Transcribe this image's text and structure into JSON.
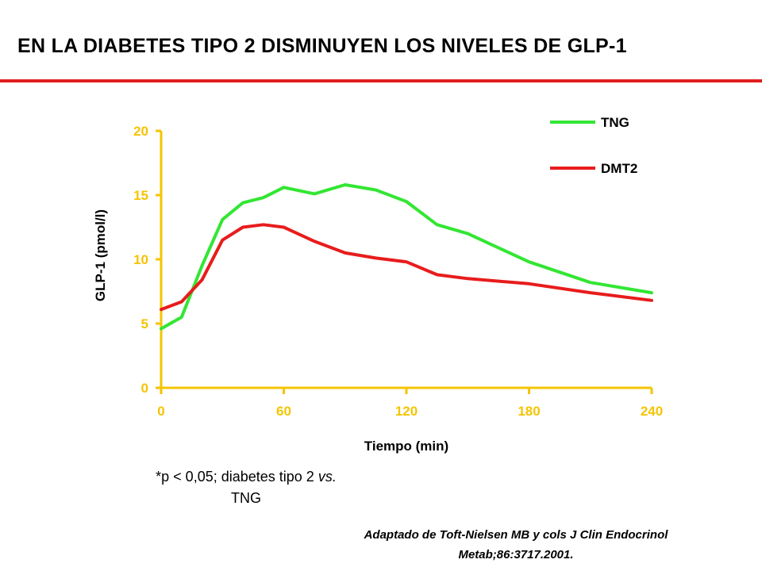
{
  "title": "EN LA DIABETES TIPO 2 DISMINUYEN LOS NIVELES DE GLP-1",
  "colors": {
    "accent_rule": "#e01e1e",
    "axis": "#f5c400"
  },
  "note": {
    "prefix": "*p < 0,05; diabetes tipo 2 ",
    "vs": "vs.",
    "suffix": "TNG"
  },
  "source": {
    "line1": "Adaptado de Toft-Nielsen MB y cols J Clin Endocrinol",
    "line2": "Metab;86:3717.2001."
  },
  "chart_data": {
    "type": "line",
    "title": "",
    "xlabel": "Tiempo (min)",
    "ylabel": "GLP-1 (pmol/l)",
    "xlim": [
      0,
      240
    ],
    "ylim": [
      0,
      20
    ],
    "xticks": [
      0,
      60,
      120,
      180,
      240
    ],
    "yticks": [
      0,
      5,
      10,
      15,
      20
    ],
    "grid": false,
    "legend_position": "top-right",
    "series": [
      {
        "name": "TNG",
        "color": "#33e633",
        "x": [
          0,
          10,
          20,
          30,
          40,
          50,
          60,
          75,
          90,
          105,
          120,
          135,
          150,
          165,
          180,
          210,
          240
        ],
        "y": [
          4.6,
          5.5,
          9.5,
          13.1,
          14.4,
          14.8,
          15.6,
          15.1,
          15.8,
          15.4,
          14.5,
          12.7,
          12.0,
          10.9,
          9.8,
          8.2,
          7.4
        ]
      },
      {
        "name": "DMT2",
        "color": "#e81c1c",
        "x": [
          0,
          10,
          20,
          30,
          40,
          50,
          60,
          75,
          90,
          105,
          120,
          135,
          150,
          180,
          210,
          240
        ],
        "y": [
          6.1,
          6.7,
          8.4,
          11.5,
          12.5,
          12.7,
          12.5,
          11.4,
          10.5,
          10.1,
          9.8,
          8.8,
          8.5,
          8.1,
          7.4,
          6.8
        ]
      }
    ]
  }
}
